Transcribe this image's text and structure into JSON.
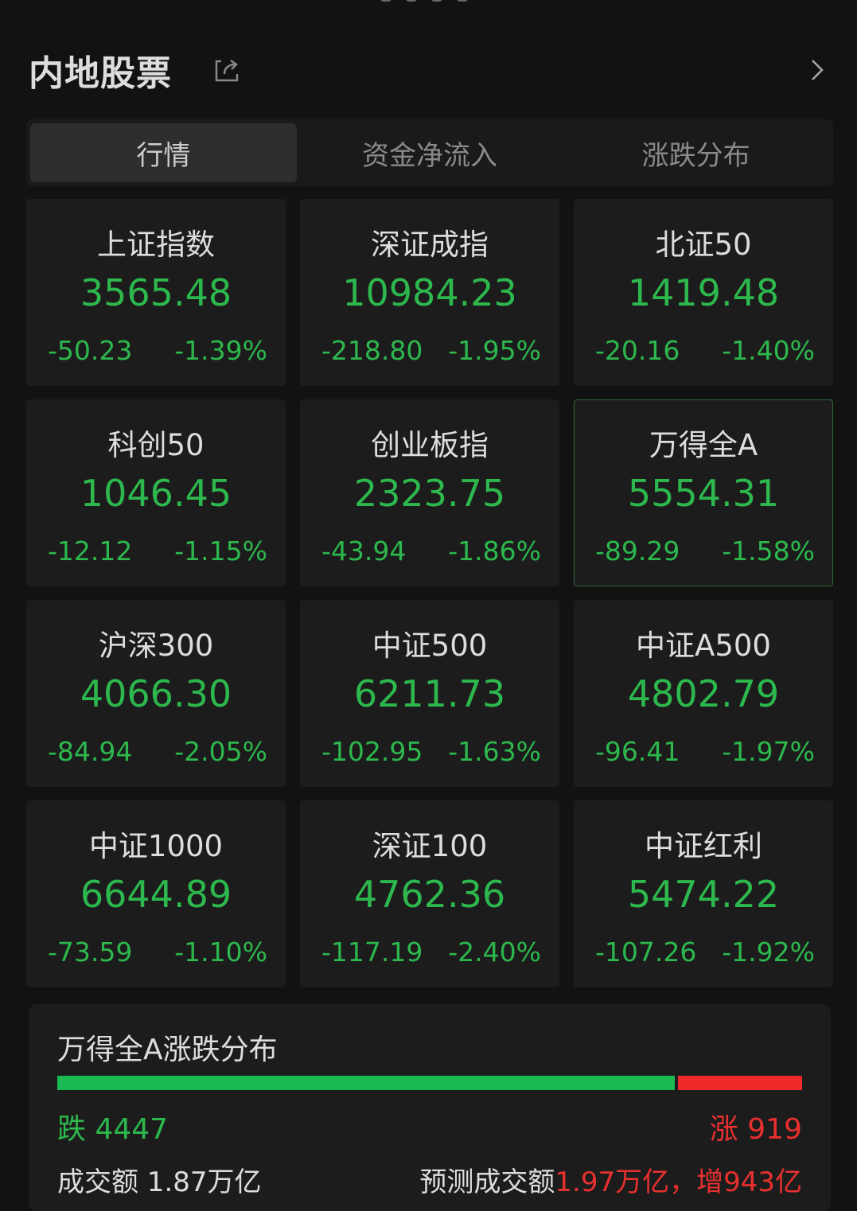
{
  "header": {
    "title": "内地股票"
  },
  "tabs": [
    {
      "label": "行情",
      "active": true
    },
    {
      "label": "资金净流入",
      "active": false
    },
    {
      "label": "涨跌分布",
      "active": false
    }
  ],
  "indices": [
    {
      "name": "上证指数",
      "value": "3565.48",
      "change": "-50.23",
      "pct": "-1.39%"
    },
    {
      "name": "深证成指",
      "value": "10984.23",
      "change": "-218.80",
      "pct": "-1.95%"
    },
    {
      "name": "北证50",
      "value": "1419.48",
      "change": "-20.16",
      "pct": "-1.40%"
    },
    {
      "name": "科创50",
      "value": "1046.45",
      "change": "-12.12",
      "pct": "-1.15%"
    },
    {
      "name": "创业板指",
      "value": "2323.75",
      "change": "-43.94",
      "pct": "-1.86%"
    },
    {
      "name": "万得全A",
      "value": "5554.31",
      "change": "-89.29",
      "pct": "-1.58%",
      "selected": true
    },
    {
      "name": "沪深300",
      "value": "4066.30",
      "change": "-84.94",
      "pct": "-2.05%"
    },
    {
      "name": "中证500",
      "value": "6211.73",
      "change": "-102.95",
      "pct": "-1.63%"
    },
    {
      "name": "中证A500",
      "value": "4802.79",
      "change": "-96.41",
      "pct": "-1.97%"
    },
    {
      "name": "中证1000",
      "value": "6644.89",
      "change": "-73.59",
      "pct": "-1.10%"
    },
    {
      "name": "深证100",
      "value": "4762.36",
      "change": "-117.19",
      "pct": "-2.40%"
    },
    {
      "name": "中证红利",
      "value": "5474.22",
      "change": "-107.26",
      "pct": "-1.92%"
    }
  ],
  "distribution": {
    "title": "万得全A涨跌分布",
    "down_label": "跌 4447",
    "up_label": "涨 919",
    "down": 4447,
    "up": 919,
    "turnover": "成交额 1.87万亿",
    "forecast_label": "预测成交额",
    "forecast_value": "1.97万亿，增943亿"
  },
  "colors": {
    "down": "#2db84d",
    "up": "#e8302f",
    "background": "#121212"
  }
}
